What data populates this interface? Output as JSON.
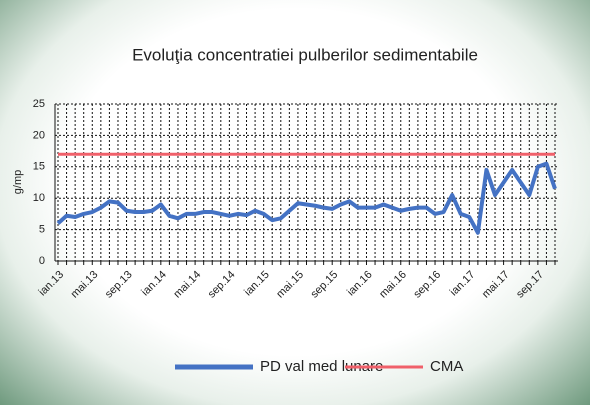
{
  "chart_data": {
    "type": "line",
    "title": "Evoluţia concentratiei  pulberilor sedimentabile",
    "y_label": "g/mp",
    "categories": [
      "ian.13",
      null,
      null,
      null,
      "mai.13",
      null,
      null,
      null,
      "sep.13",
      null,
      null,
      null,
      "ian.14",
      null,
      null,
      null,
      "mai.14",
      null,
      null,
      null,
      "sep.14",
      null,
      null,
      null,
      "ian.15",
      null,
      null,
      null,
      "mai.15",
      null,
      null,
      null,
      "sep.15",
      null,
      null,
      null,
      "ian.16",
      null,
      null,
      null,
      "mai.16",
      null,
      null,
      null,
      "sep.16",
      null,
      null,
      null,
      "ian.17",
      null,
      null,
      null,
      "mai.17",
      null,
      null,
      null,
      "sep.17",
      null,
      null
    ],
    "series": [
      {
        "name": "PD val med lunare",
        "color": "#4472c4",
        "values": [
          6,
          7.2,
          7,
          7.5,
          7.8,
          8.5,
          9.5,
          9.3,
          8,
          7.8,
          7.8,
          8,
          9,
          7.2,
          6.8,
          7.5,
          7.5,
          7.8,
          7.8,
          7.5,
          7.2,
          7.5,
          7.3,
          8,
          7.5,
          6.5,
          6.8,
          8,
          9.2,
          9,
          8.8,
          8.5,
          8.3,
          9,
          9.5,
          8.5,
          8.5,
          8.5,
          9,
          8.5,
          8,
          8.3,
          8.5,
          8.5,
          7.5,
          7.8,
          10.5,
          7.5,
          7,
          4.5,
          14.5,
          10.5,
          12.5,
          14.5,
          12.5,
          10.5,
          15,
          15.5,
          11.5
        ]
      },
      {
        "name": "CMA",
        "color": "#f0606a",
        "values": [
          17,
          17,
          17,
          17,
          17,
          17,
          17,
          17,
          17,
          17,
          17,
          17,
          17,
          17,
          17,
          17,
          17,
          17,
          17,
          17,
          17,
          17,
          17,
          17,
          17,
          17,
          17,
          17,
          17,
          17,
          17,
          17,
          17,
          17,
          17,
          17,
          17,
          17,
          17,
          17,
          17,
          17,
          17,
          17,
          17,
          17,
          17,
          17,
          17,
          17,
          17,
          17,
          17,
          17,
          17,
          17,
          17,
          17,
          17
        ]
      }
    ],
    "ylim": [
      0,
      25
    ],
    "yticks": [
      0,
      5,
      10,
      15,
      20,
      25
    ],
    "grid": true
  }
}
